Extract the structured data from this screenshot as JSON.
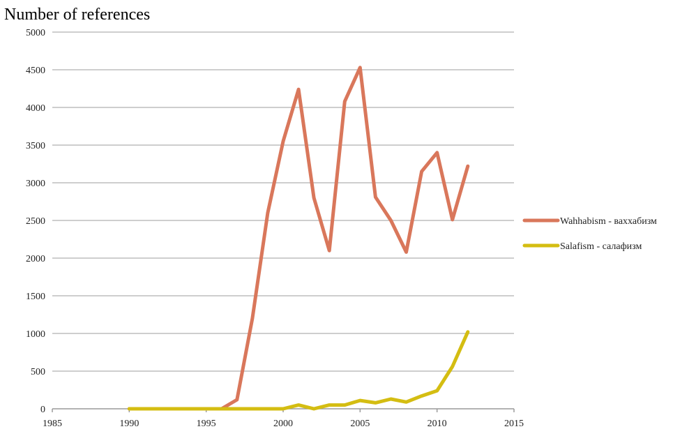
{
  "chart_data": {
    "type": "line",
    "title": "",
    "xlabel": "",
    "ylabel": "Number of references",
    "xlim": [
      1985,
      2015
    ],
    "ylim": [
      0,
      5000
    ],
    "xticks": [
      "1985",
      "1990",
      "1995",
      "2000",
      "2005",
      "2010",
      "2015"
    ],
    "yticks": [
      "0",
      "500",
      "1000",
      "1500",
      "2000",
      "2500",
      "3000",
      "3500",
      "4000",
      "4500",
      "5000"
    ],
    "grid": "horizontal",
    "legend_position": "right",
    "series": [
      {
        "name": "Wahhabism - ваххабизм",
        "color": "#d9775b",
        "x": [
          1990,
          1991,
          1992,
          1993,
          1994,
          1995,
          1996,
          1997,
          1998,
          1999,
          2000,
          2001,
          2002,
          2003,
          2004,
          2005,
          2006,
          2007,
          2008,
          2009,
          2010,
          2011,
          2012
        ],
        "y": [
          0,
          0,
          0,
          0,
          0,
          0,
          0,
          120,
          1200,
          2600,
          3550,
          4240,
          2800,
          2100,
          4080,
          4530,
          2810,
          2500,
          2080,
          3150,
          3400,
          2510,
          3220
        ]
      },
      {
        "name": "Salafism - салафизм",
        "color": "#d4bd12",
        "x": [
          1990,
          1991,
          1992,
          1993,
          1994,
          1995,
          1996,
          1997,
          1998,
          1999,
          2000,
          2001,
          2002,
          2003,
          2004,
          2005,
          2006,
          2007,
          2008,
          2009,
          2010,
          2011,
          2012
        ],
        "y": [
          0,
          0,
          0,
          0,
          0,
          0,
          0,
          0,
          0,
          0,
          0,
          50,
          0,
          50,
          50,
          110,
          80,
          130,
          90,
          170,
          240,
          560,
          1020
        ]
      }
    ]
  }
}
